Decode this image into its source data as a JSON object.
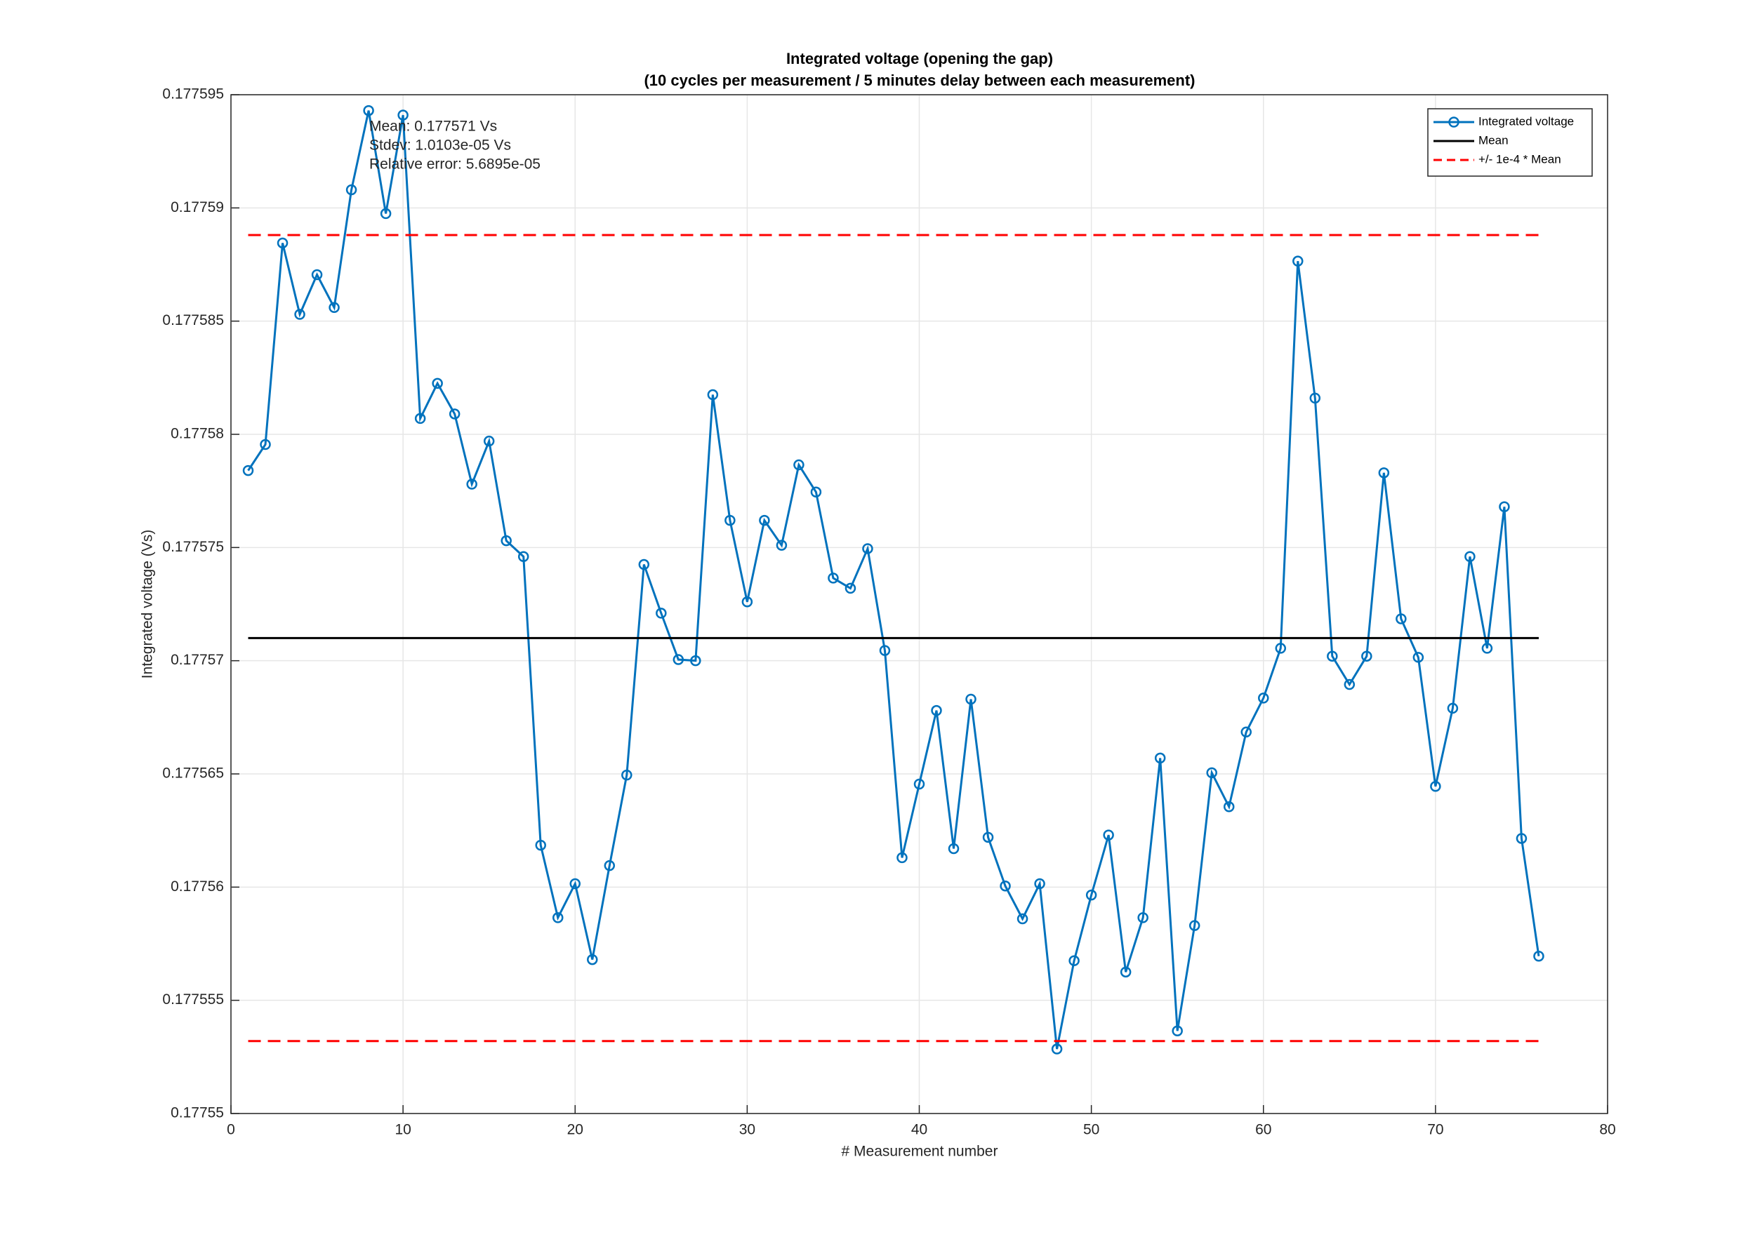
{
  "chart_data": {
    "type": "line",
    "title": "Integrated voltage (opening the gap)",
    "subtitle": "(10 cycles per measurement / 5 minutes delay between each measurement)",
    "x_label": "# Measurement number",
    "y_label": "Integrated voltage (Vs)",
    "xlim": [
      0,
      80
    ],
    "xticks": [
      0,
      10,
      20,
      30,
      40,
      50,
      60,
      70,
      80
    ],
    "ylim": [
      0.17755,
      0.177595
    ],
    "yticks": [
      0.17755,
      0.177555,
      0.17756,
      0.177565,
      0.17757,
      0.177575,
      0.17758,
      0.177585,
      0.17759,
      0.177595
    ],
    "grid": true,
    "legend_position": "upper right",
    "annotations": [
      "Mean: 0.177571 Vs",
      "Stdev: 1.0103e-05 Vs",
      "Relative error: 5.6895e-05"
    ],
    "series": [
      {
        "name": "Integrated voltage",
        "color": "#0072bd",
        "marker": "circle",
        "x": [
          1,
          2,
          3,
          4,
          5,
          6,
          7,
          8,
          9,
          10,
          11,
          12,
          13,
          14,
          15,
          16,
          17,
          18,
          19,
          20,
          21,
          22,
          23,
          24,
          25,
          26,
          27,
          28,
          29,
          30,
          31,
          32,
          33,
          34,
          35,
          36,
          37,
          38,
          39,
          40,
          41,
          42,
          43,
          44,
          45,
          46,
          47,
          48,
          49,
          50,
          51,
          52,
          53,
          54,
          55,
          56,
          57,
          58,
          59,
          60,
          61,
          62,
          63,
          64,
          65,
          66,
          67,
          68,
          69,
          70,
          71,
          72,
          73,
          74,
          75,
          76
        ],
        "values": [
          0.1775784,
          0.17757955,
          0.17758845,
          0.1775853,
          0.17758705,
          0.1775856,
          0.1775908,
          0.1775943,
          0.17758975,
          0.1775941,
          0.1775807,
          0.17758225,
          0.1775809,
          0.1775778,
          0.1775797,
          0.1775753,
          0.1775746,
          0.17756185,
          0.17755865,
          0.17756015,
          0.1775568,
          0.17756095,
          0.17756495,
          0.17757425,
          0.1775721,
          0.17757005,
          0.17757,
          0.17758175,
          0.1775762,
          0.1775726,
          0.1775762,
          0.1775751,
          0.17757865,
          0.17757745,
          0.17757365,
          0.1775732,
          0.17757495,
          0.17757045,
          0.1775613,
          0.17756455,
          0.1775678,
          0.1775617,
          0.1775683,
          0.1775622,
          0.17756005,
          0.1775586,
          0.17756015,
          0.17755285,
          0.17755675,
          0.17755965,
          0.1775623,
          0.17755625,
          0.17755865,
          0.1775657,
          0.17755365,
          0.1775583,
          0.17756505,
          0.17756355,
          0.17756685,
          0.17756835,
          0.17757055,
          0.17758765,
          0.1775816,
          0.1775702,
          0.17756895,
          0.1775702,
          0.1775783,
          0.17757185,
          0.17757015,
          0.17756445,
          0.1775679,
          0.1775746,
          0.17757055,
          0.1775768,
          0.17756215,
          0.17755695
        ]
      },
      {
        "name": "Mean",
        "color": "#000000",
        "x": [
          1,
          76
        ],
        "values": [
          0.177571,
          0.177571
        ]
      },
      {
        "name": "+/- 1e-4 * Mean",
        "color": "#ff0000",
        "dashed": true,
        "x": [
          1,
          76
        ],
        "values": [
          0.1775888,
          0.1775888
        ],
        "lower": [
          0.1775532,
          0.1775532
        ]
      }
    ]
  }
}
